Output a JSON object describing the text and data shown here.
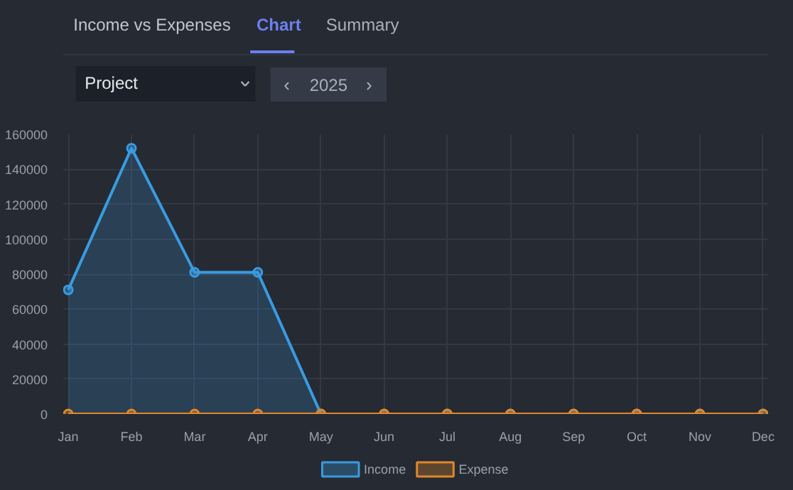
{
  "chart_data": {
    "type": "area",
    "title": "Income vs Expenses",
    "annotations": [
      "Chart",
      "Summary",
      "Project",
      "‹",
      "2025",
      "›"
    ],
    "categories": [
      "Jan",
      "Feb",
      "Mar",
      "Apr",
      "May",
      "Jun",
      "Jul",
      "Aug",
      "Sep",
      "Oct",
      "Nov",
      "Dec"
    ],
    "series": [
      {
        "name": "Income",
        "color": "#3a9be0",
        "values": [
          71000,
          152000,
          81000,
          81000,
          0,
          0,
          0,
          0,
          0,
          0,
          0,
          0
        ]
      },
      {
        "name": "Expense",
        "type": "line",
        "color": "#e0872a",
        "values": [
          0,
          0,
          0,
          0,
          0,
          0,
          0,
          0,
          0,
          0,
          0,
          0
        ]
      }
    ],
    "ylim": [
      0,
      160000
    ],
    "yticks": [
      0,
      20000,
      40000,
      60000,
      80000,
      100000,
      120000,
      140000,
      160000
    ],
    "grid": true,
    "legend": "bottom",
    "marker": "circle",
    "line_style": "solid"
  }
}
